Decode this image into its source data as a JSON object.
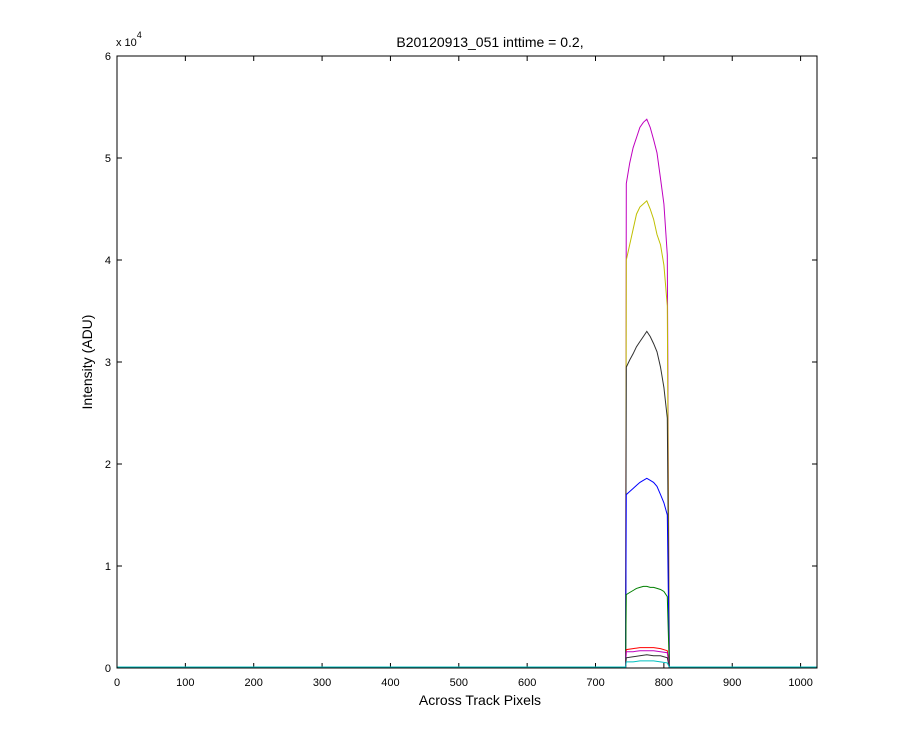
{
  "chart_data": {
    "type": "line",
    "title": "B20120913_051 inttime = 0.2,",
    "xlabel": "Across Track Pixels",
    "ylabel": "Intensity (ADU)",
    "xlim": [
      0,
      1024
    ],
    "ylim": [
      0,
      6
    ],
    "y_multiplier_prefix": "x 10",
    "y_multiplier_exponent": "4",
    "x_ticks": [
      0,
      100,
      200,
      300,
      400,
      500,
      600,
      700,
      800,
      900,
      1000
    ],
    "x_tick_labels": [
      "0",
      "100",
      "200",
      "300",
      "400",
      "500",
      "600",
      "700",
      "800",
      "900",
      "1000"
    ],
    "y_ticks": [
      0,
      1,
      2,
      3,
      4,
      5,
      6
    ],
    "y_tick_labels": [
      "0",
      "1",
      "2",
      "3",
      "4",
      "5",
      "6"
    ],
    "grid": false,
    "legend": "none",
    "signal_region": {
      "x_start": 745,
      "x_end": 808,
      "background_level": 0.01
    },
    "series": [
      {
        "color": "#bf00bf",
        "points": [
          [
            745,
            4.75
          ],
          [
            750,
            4.95
          ],
          [
            755,
            5.1
          ],
          [
            760,
            5.2
          ],
          [
            765,
            5.3
          ],
          [
            770,
            5.35
          ],
          [
            775,
            5.38
          ],
          [
            780,
            5.3
          ],
          [
            785,
            5.18
          ],
          [
            790,
            5.05
          ],
          [
            795,
            4.8
          ],
          [
            800,
            4.55
          ],
          [
            805,
            4.05
          ]
        ]
      },
      {
        "color": "#bfbf00",
        "points": [
          [
            745,
            4.0
          ],
          [
            750,
            4.15
          ],
          [
            755,
            4.3
          ],
          [
            760,
            4.45
          ],
          [
            765,
            4.52
          ],
          [
            770,
            4.55
          ],
          [
            775,
            4.58
          ],
          [
            780,
            4.5
          ],
          [
            785,
            4.4
          ],
          [
            790,
            4.25
          ],
          [
            795,
            4.15
          ],
          [
            800,
            3.95
          ],
          [
            805,
            3.55
          ]
        ]
      },
      {
        "color": "#303030",
        "points": [
          [
            745,
            2.95
          ],
          [
            750,
            3.02
          ],
          [
            755,
            3.08
          ],
          [
            760,
            3.15
          ],
          [
            765,
            3.2
          ],
          [
            770,
            3.25
          ],
          [
            775,
            3.3
          ],
          [
            780,
            3.25
          ],
          [
            785,
            3.18
          ],
          [
            790,
            3.1
          ],
          [
            795,
            2.95
          ],
          [
            800,
            2.75
          ],
          [
            805,
            2.45
          ]
        ]
      },
      {
        "color": "#0000ff",
        "points": [
          [
            745,
            1.7
          ],
          [
            750,
            1.73
          ],
          [
            755,
            1.76
          ],
          [
            760,
            1.79
          ],
          [
            765,
            1.82
          ],
          [
            770,
            1.84
          ],
          [
            775,
            1.86
          ],
          [
            780,
            1.84
          ],
          [
            785,
            1.82
          ],
          [
            790,
            1.78
          ],
          [
            795,
            1.7
          ],
          [
            800,
            1.62
          ],
          [
            805,
            1.5
          ]
        ]
      },
      {
        "color": "#008000",
        "points": [
          [
            745,
            0.72
          ],
          [
            750,
            0.74
          ],
          [
            755,
            0.76
          ],
          [
            760,
            0.78
          ],
          [
            765,
            0.79
          ],
          [
            770,
            0.8
          ],
          [
            775,
            0.8
          ],
          [
            780,
            0.79
          ],
          [
            785,
            0.79
          ],
          [
            790,
            0.78
          ],
          [
            795,
            0.77
          ],
          [
            800,
            0.75
          ],
          [
            805,
            0.7
          ]
        ]
      },
      {
        "color": "#ff0000",
        "points": [
          [
            745,
            0.18
          ],
          [
            755,
            0.19
          ],
          [
            765,
            0.2
          ],
          [
            775,
            0.2
          ],
          [
            785,
            0.2
          ],
          [
            795,
            0.19
          ],
          [
            805,
            0.17
          ]
        ]
      },
      {
        "color": "#bf00bf",
        "points": [
          [
            745,
            0.16
          ],
          [
            755,
            0.16
          ],
          [
            765,
            0.17
          ],
          [
            775,
            0.17
          ],
          [
            785,
            0.17
          ],
          [
            795,
            0.16
          ],
          [
            805,
            0.15
          ]
        ]
      },
      {
        "color": "#303030",
        "points": [
          [
            745,
            0.1
          ],
          [
            755,
            0.11
          ],
          [
            765,
            0.12
          ],
          [
            775,
            0.13
          ],
          [
            785,
            0.12
          ],
          [
            795,
            0.12
          ],
          [
            805,
            0.1
          ]
        ]
      },
      {
        "color": "#00bfbf",
        "points": [
          [
            745,
            0.06
          ],
          [
            755,
            0.06
          ],
          [
            765,
            0.07
          ],
          [
            775,
            0.07
          ],
          [
            785,
            0.07
          ],
          [
            795,
            0.06
          ],
          [
            805,
            0.05
          ]
        ]
      }
    ]
  }
}
